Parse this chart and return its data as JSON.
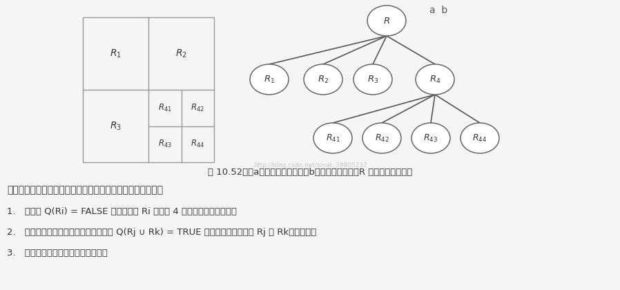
{
  "fig_bg": "#f5f5f5",
  "ab_label": "a  b",
  "caption": "图 10.52　（a）被分割的图像；（b）对应的四叉树。R 表示整个图像区域",
  "watermark": "http://blog.csdn.net/sinat_39805237",
  "intro_text": "前述讨论可以小结为如下过程，在该过程的任何一步中，我们",
  "item1": "1. 对满足 Q(Ri) = FALSE 的任何区域 Ri 分裂为 4 个不相交的象限区域。",
  "item2": "2. 当不可能进一步分裂时，对满足条件 Q(Rj ∪ Rk) = TRUE 的任意两个邻接区域 Rj 和 Rk进行聚合。",
  "item3": "3. 当无法进一步聚合时，停止操作。",
  "grid_line_color": "#999999",
  "edge_color": "#555555",
  "node_edge_color": "#666666",
  "node_fill": "#ffffff",
  "text_color": "#333333"
}
